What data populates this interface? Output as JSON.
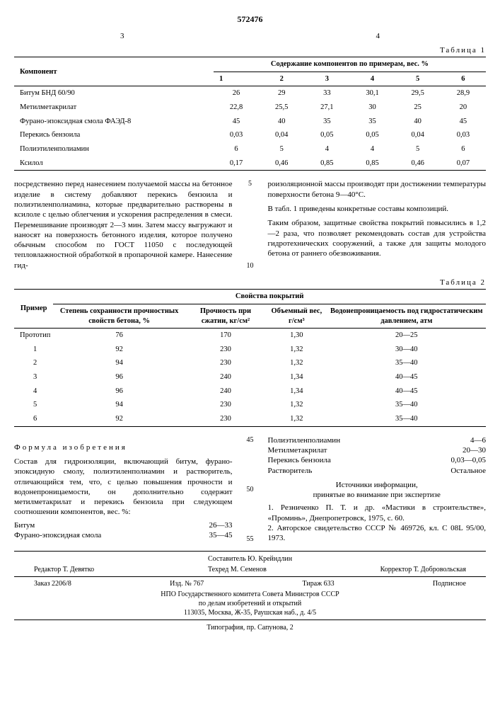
{
  "patent_number": "572476",
  "page_left": "3",
  "page_right": "4",
  "table1": {
    "label": "Таблица 1",
    "header_component": "Компонент",
    "header_content": "Содержание компонентов по примерам, вес. %",
    "col_nums": [
      "1",
      "2",
      "3",
      "4",
      "5",
      "6"
    ],
    "rows": [
      {
        "name": "Битум БНД 60/90",
        "v": [
          "26",
          "29",
          "33",
          "30,1",
          "29,5",
          "28,9"
        ]
      },
      {
        "name": "Метилметакрилат",
        "v": [
          "22,8",
          "25,5",
          "27,1",
          "30",
          "25",
          "20"
        ]
      },
      {
        "name": "Фурано-эпоксидная смола ФАЭД-8",
        "v": [
          "45",
          "40",
          "35",
          "35",
          "40",
          "45"
        ]
      },
      {
        "name": "Перекись бензоила",
        "v": [
          "0,03",
          "0,04",
          "0,05",
          "0,05",
          "0,04",
          "0,03"
        ]
      },
      {
        "name": "Полиэтиленполиамин",
        "v": [
          "6",
          "5",
          "4",
          "4",
          "5",
          "6"
        ]
      },
      {
        "name": "Ксилол",
        "v": [
          "0,17",
          "0,46",
          "0,85",
          "0,85",
          "0,46",
          "0,07"
        ]
      }
    ]
  },
  "text_col1": "посредственно перед нанесением получаемой массы на бетонное изделие в систему добавляют перекись бензоила и полиэтиленполиамина, которые предварительно растворены в ксилоле с целью облегчения и ускорения распределения в смеси. Перемешивание производят 2—3 мин. Затем массу выгружают и наносят на поверхность бетонного изделия, которое получено обычным способом по ГОСТ 11050 с последующей тепловлажностной обработкой в пропарочной камере. Нанесение гид-",
  "text_col2a": "роизоляционной массы производят при достижении температуры поверхности бетона 9—40°С.",
  "text_col2b": "В табл. 1 приведены конкретные составы композиций.",
  "text_col2c": "Таким образом, защитные свойства покрытий повысились в 1,2—2 раза, что позволяет рекомендовать состав для устройства гидротехнических сооружений, а также для защиты молодого бетона от раннего обезвоживания.",
  "linemarks1": [
    "5",
    "10"
  ],
  "table2": {
    "label": "Таблица 2",
    "header_props": "Свойства покрытий",
    "cols": [
      "Пример",
      "Степень сохранности прочностных свойств бетона, %",
      "Прочность при сжатии, кг/см²",
      "Объемный вес, г/см³",
      "Водонепроницаемость под гидростатическим давлением, атм"
    ],
    "rows": [
      [
        "Прототип",
        "76",
        "170",
        "1,30",
        "20—25"
      ],
      [
        "1",
        "92",
        "230",
        "1,32",
        "30—40"
      ],
      [
        "2",
        "94",
        "230",
        "1,32",
        "35—40"
      ],
      [
        "3",
        "96",
        "240",
        "1,34",
        "40—45"
      ],
      [
        "4",
        "96",
        "240",
        "1,34",
        "40—45"
      ],
      [
        "5",
        "94",
        "230",
        "1,32",
        "35—40"
      ],
      [
        "6",
        "92",
        "230",
        "1,32",
        "35—40"
      ]
    ]
  },
  "formula_title": "Формула изобретения",
  "formula_text": "Состав для гидроизоляции, включающий битум, фурано-эпоксидную смолу, полиэтиленполиамин и растворитель, отличающийся тем, что, с целью повышения прочности и водонепроницаемости, он дополнительно содержит метилметакрилат и перекись бензоила при следующем соотношении компонентов, вес. %:",
  "composition_left": [
    {
      "k": "Битум",
      "v": "26—33"
    },
    {
      "k": "Фурано-эпоксидная смола",
      "v": "35—45"
    }
  ],
  "composition_right": [
    {
      "k": "Полиэтиленполиамин",
      "v": "4—6"
    },
    {
      "k": "Метилметакрилат",
      "v": "20—30"
    },
    {
      "k": "Перекись бензоила",
      "v": "0,03—0,05"
    },
    {
      "k": "Растворитель",
      "v": "Остальное"
    }
  ],
  "linemarks2": [
    "45",
    "50",
    "55"
  ],
  "sources_title": "Источники информации,\nпринятые во внимание при экспертизе",
  "sources": [
    "1. Резниченко П. Т. и др. «Мастики в строительстве», «Проминь», Днепропетровск, 1975, с. 60.",
    "2. Авторское свидетельство СССР № 469726, кл. С 08L 95/00, 1973."
  ],
  "footer": {
    "compiler": "Составитель Ю. Крейндлин",
    "editor": "Редактор Т. Девятко",
    "techred": "Техред М. Семенов",
    "corrector": "Корректор Т. Добровольская",
    "order": "Заказ 2206/8",
    "izd": "Изд. № 767",
    "tirazh": "Тираж 633",
    "podpis": "Подписное",
    "org1": "НПО Государственного комитета Совета Министров СССР",
    "org2": "по делам изобретений и открытий",
    "addr": "113035, Москва, Ж-35, Раушская наб., д. 4/5",
    "tipo": "Типография, пр. Сапунова, 2"
  }
}
